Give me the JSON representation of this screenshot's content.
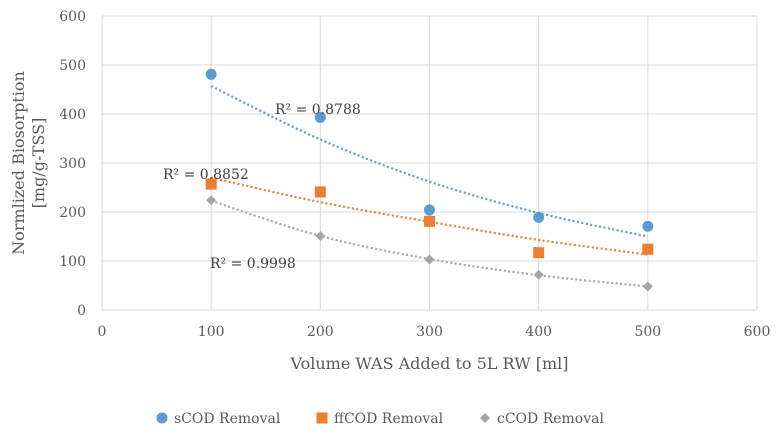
{
  "chart_data": {
    "type": "scatter",
    "title": "",
    "xlabel": "Volume WAS Added to 5L RW [ml]",
    "ylabel_lines": [
      "Normlized Biosorption",
      "[mg/g-TSS]"
    ],
    "xlim": [
      0,
      600
    ],
    "ylim": [
      0,
      600
    ],
    "xticks": [
      0,
      100,
      200,
      300,
      400,
      500,
      600
    ],
    "yticks": [
      0,
      100,
      200,
      300,
      400,
      500,
      600
    ],
    "grid": true,
    "legend_position": "bottom",
    "series": [
      {
        "name": "sCOD Removal",
        "color": "#5B9BD5",
        "marker": "circle",
        "x": [
          100,
          200,
          300,
          400,
          500
        ],
        "y": [
          481,
          393,
          204,
          189,
          171
        ],
        "trendline": {
          "type": "power",
          "r2_label": "R² = 0.8788",
          "points": [
            [
              100,
              457
            ],
            [
              200,
              348
            ],
            [
              300,
              262
            ],
            [
              400,
              198
            ],
            [
              500,
              150
            ]
          ]
        }
      },
      {
        "name": "ffCOD Removal",
        "color": "#ED7D31",
        "marker": "square",
        "x": [
          100,
          200,
          300,
          400,
          500
        ],
        "y": [
          257,
          241,
          181,
          117,
          124
        ],
        "trendline": {
          "type": "power",
          "r2_label": "R² = 0.8852",
          "points": [
            [
              100,
              270
            ],
            [
              200,
              220
            ],
            [
              300,
              180
            ],
            [
              400,
              143
            ],
            [
              500,
              113
            ]
          ]
        }
      },
      {
        "name": "cCOD Removal",
        "color": "#A5A5A5",
        "marker": "diamond",
        "x": [
          100,
          200,
          300,
          400,
          500
        ],
        "y": [
          224,
          151,
          103,
          72,
          48
        ],
        "trendline": {
          "type": "power",
          "r2_label": "R² = 0.9998",
          "points": [
            [
              100,
              223
            ],
            [
              200,
              151
            ],
            [
              300,
              104
            ],
            [
              400,
              71
            ],
            [
              500,
              48
            ]
          ]
        }
      }
    ]
  }
}
